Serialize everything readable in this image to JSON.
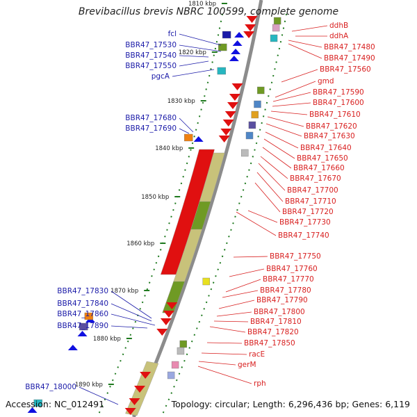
{
  "title": "Brevibacillus brevis NBRC 100599, complete genome",
  "footer": {
    "accession": "Accession: NC_012491",
    "topology": "Topology: circular; Length: 6,296,436 bp; Genes: 6,119"
  },
  "colors": {
    "left_labels": "#1a1aa8",
    "right_labels": "#d81e1e",
    "backbone": "#8c8c8c",
    "tick": "#1f7a1f",
    "strand_arrow_plus": "#e01010",
    "strand_arrow_minus": "#1010e0",
    "olive_band": "#c8c27a",
    "green_band": "#6f9a24"
  },
  "kbp_ticks": [
    "1810 kbp",
    "1820 kbp",
    "1830 kbp",
    "1840 kbp",
    "1850 kbp",
    "1860 kbp",
    "1870 kbp",
    "1880 kbp",
    "1890 kbp"
  ],
  "left_genes": [
    "fcl",
    "BBR47_17530",
    "BBR47_17540",
    "BBR47_17550",
    "pgcA",
    "BBR47_17680",
    "BBR47_17690",
    "BBR47_17830",
    "BBR47_17840",
    "BBR47_17860",
    "BBR47_17890",
    "BBR47_18000"
  ],
  "right_genes": [
    "ddhB",
    "ddhA",
    "BBR47_17480",
    "BBR47_17490",
    "BBR47_17560",
    "gmd",
    "BBR47_17590",
    "BBR47_17600",
    "BBR47_17610",
    "BBR47_17620",
    "BBR47_17630",
    "BBR47_17640",
    "BBR47_17650",
    "BBR47_17660",
    "BBR47_17670",
    "BBR47_17700",
    "BBR47_17710",
    "BBR47_17720",
    "BBR47_17730",
    "BBR47_17740",
    "BBR47_17750",
    "BBR47_17760",
    "BBR47_17770",
    "BBR47_17780",
    "BBR47_17790",
    "BBR47_17800",
    "BBR47_17810",
    "BBR47_17820",
    "BBR47_17850",
    "racE",
    "gerM",
    "rph"
  ]
}
